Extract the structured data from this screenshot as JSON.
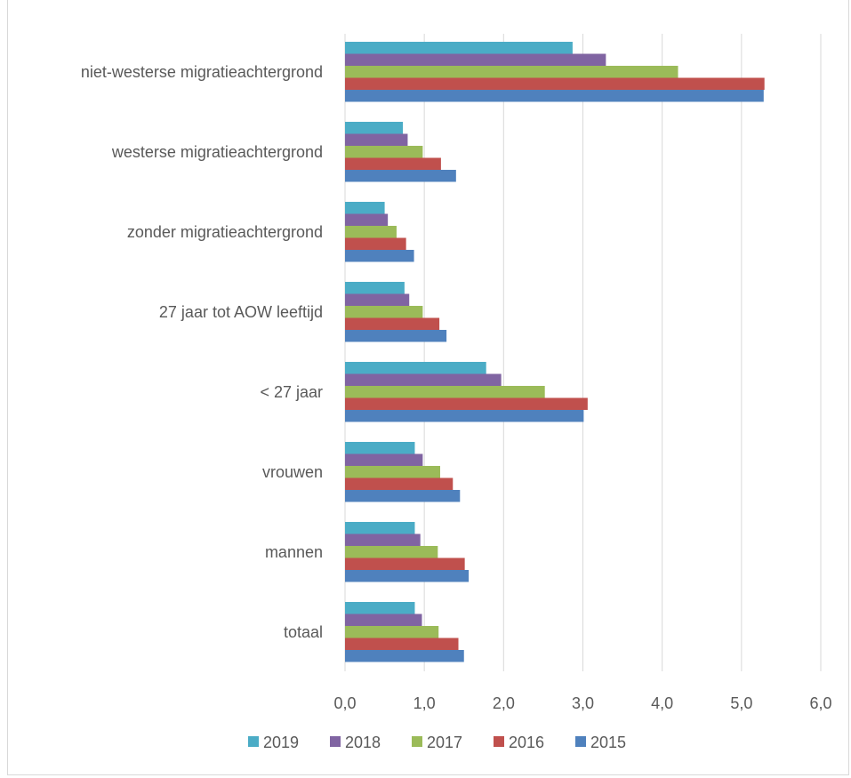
{
  "chart_data": {
    "type": "bar",
    "orientation": "horizontal",
    "categories": [
      "niet-westerse migratieachtergrond",
      "westerse migratieachtergrond",
      "zonder migratieachtergrond",
      "27 jaar tot AOW leeftijd",
      "< 27 jaar",
      "vrouwen",
      "mannen",
      "totaal"
    ],
    "series": [
      {
        "name": "2019",
        "color": "#4bacc6",
        "values": [
          2.87,
          0.73,
          0.5,
          0.75,
          1.78,
          0.88,
          0.88,
          0.88
        ]
      },
      {
        "name": "2018",
        "color": "#8064a2",
        "values": [
          3.29,
          0.79,
          0.54,
          0.81,
          1.97,
          0.98,
          0.95,
          0.97
        ]
      },
      {
        "name": "2017",
        "color": "#9bbb59",
        "values": [
          4.2,
          0.98,
          0.65,
          0.98,
          2.52,
          1.2,
          1.17,
          1.18
        ]
      },
      {
        "name": "2016",
        "color": "#c0504d",
        "values": [
          5.29,
          1.21,
          0.77,
          1.19,
          3.06,
          1.36,
          1.51,
          1.43
        ]
      },
      {
        "name": "2015",
        "color": "#4f81bd",
        "values": [
          5.28,
          1.4,
          0.87,
          1.28,
          3.01,
          1.45,
          1.56,
          1.5
        ]
      }
    ],
    "xlim": [
      0,
      6
    ],
    "ticks": [
      "0,0",
      "1,0",
      "2,0",
      "3,0",
      "4,0",
      "5,0",
      "6,0"
    ],
    "tick_values": [
      0,
      1,
      2,
      3,
      4,
      5,
      6
    ],
    "grid": true,
    "legend_position": "bottom",
    "title": "",
    "xlabel": "",
    "ylabel": ""
  }
}
